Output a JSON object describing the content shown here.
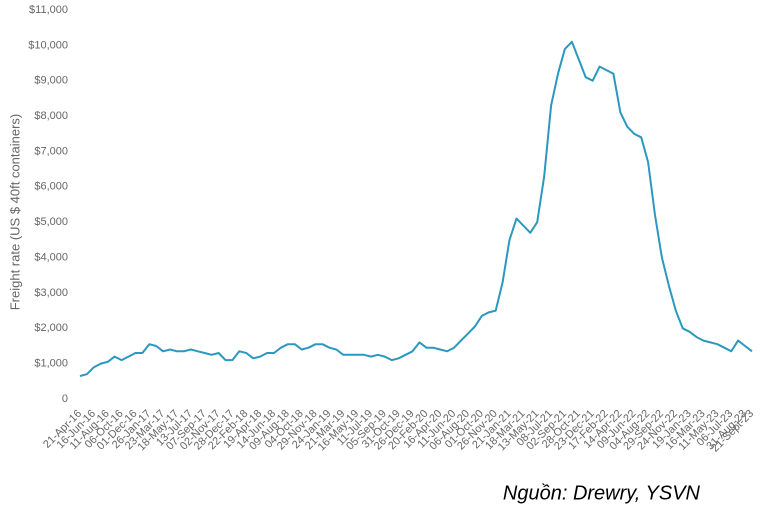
{
  "chart_data": {
    "type": "line",
    "y_label": "Freight rate (US $ 40ft containers)",
    "source": "Nguồn: Drewry, YSVN",
    "categories": [
      "21-Apr-16",
      null,
      "16-Jun-16",
      null,
      "11-Aug-16",
      null,
      "06-Oct-16",
      null,
      "01-Dec-16",
      null,
      "26-Jan-17",
      null,
      "23-Mar-17",
      null,
      "18-May-17",
      null,
      "13-Jul-17",
      null,
      "07-Sep-17",
      null,
      "02-Nov-17",
      null,
      "28-Dec-17",
      null,
      "22-Feb-18",
      null,
      "19-Apr-18",
      null,
      "14-Jun-18",
      null,
      "09-Aug-18",
      null,
      "04-Oct-18",
      null,
      "29-Nov-18",
      null,
      "24-Jan-19",
      null,
      "21-Mar-19",
      null,
      "16-May-19",
      null,
      "11-Jul-19",
      null,
      "05-Sep-19",
      null,
      "31-Oct-19",
      null,
      "26-Dec-19",
      null,
      "20-Feb-20",
      null,
      "16-Apr-20",
      null,
      "11-Jun-20",
      null,
      "06-Aug-20",
      null,
      "01-Oct-20",
      null,
      "26-Nov-20",
      null,
      "21-Jan-21",
      null,
      "18-Mar-21",
      null,
      "13-May-21",
      null,
      "08-Jul-21",
      null,
      "02-Sep-21",
      null,
      "28-Oct-21",
      null,
      "23-Dec-21",
      null,
      "17-Feb-22",
      null,
      "14-Apr-22",
      null,
      "09-Jun-22",
      null,
      "04-Aug-22",
      null,
      "29-Sep-22",
      null,
      "24-Nov-22",
      null,
      "19-Jan-23",
      null,
      "16-Mar-23",
      null,
      "11-May-23",
      null,
      "06-Jul-23",
      null,
      "31-Aug-23",
      "21-Sept-23"
    ],
    "series": [
      {
        "name": "Freight rate",
        "color": "#2b98bf",
        "values": [
          650,
          700,
          900,
          1000,
          1050,
          1200,
          1100,
          1200,
          1300,
          1300,
          1550,
          1500,
          1350,
          1400,
          1350,
          1350,
          1400,
          1350,
          1300,
          1250,
          1300,
          1100,
          1100,
          1350,
          1300,
          1150,
          1200,
          1300,
          1300,
          1450,
          1550,
          1550,
          1400,
          1450,
          1550,
          1550,
          1450,
          1400,
          1250,
          1250,
          1250,
          1250,
          1200,
          1250,
          1200,
          1100,
          1150,
          1250,
          1350,
          1600,
          1450,
          1450,
          1400,
          1350,
          1450,
          1650,
          1850,
          2050,
          2350,
          2450,
          2500,
          3300,
          4500,
          5100,
          4900,
          4700,
          5000,
          6300,
          8300,
          9200,
          9900,
          10100,
          9600,
          9100,
          9000,
          9400,
          9300,
          9200,
          8100,
          7700,
          7500,
          7400,
          6700,
          5200,
          4000,
          3200,
          2500,
          2000,
          1900,
          1750,
          1650,
          1600,
          1550,
          1450,
          1350,
          1650,
          1500,
          1350
        ]
      }
    ],
    "ylim": [
      0,
      11000
    ],
    "yticks": [
      0,
      {
        "value": 1000,
        "label": "$1,000"
      },
      {
        "value": 2000,
        "label": "$2,000"
      },
      {
        "value": 3000,
        "label": "$3,000"
      },
      {
        "value": 4000,
        "label": "$4,000"
      },
      {
        "value": 5000,
        "label": "$5,000"
      },
      {
        "value": 6000,
        "label": "$6,000"
      },
      {
        "value": 7000,
        "label": "$7,000"
      },
      {
        "value": 8000,
        "label": "$8,000"
      },
      {
        "value": 9000,
        "label": "$9,000"
      },
      {
        "value": 10000,
        "label": "$10,000"
      },
      {
        "value": 11000,
        "label": "$11,000"
      }
    ],
    "grid": false
  }
}
